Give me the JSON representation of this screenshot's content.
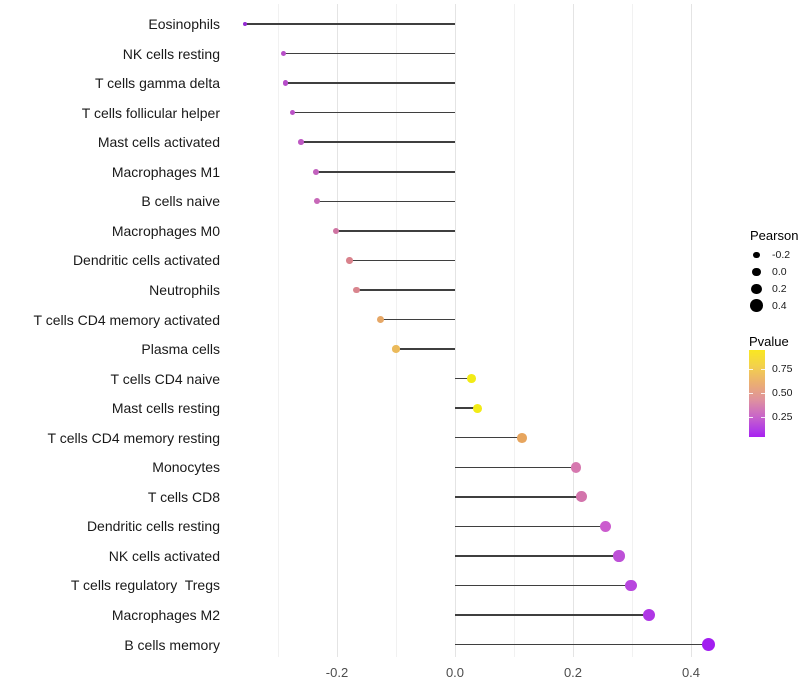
{
  "chart_data": {
    "type": "lollipop",
    "orientation": "horizontal",
    "title": "",
    "xlabel": "",
    "ylabel": "",
    "categories": [
      "Eosinophils",
      "NK cells resting",
      "T cells gamma delta",
      "T cells follicular helper",
      "Mast cells activated",
      "Macrophages M1",
      "B cells naive",
      "Macrophages M0",
      "Dendritic cells activated",
      "Neutrophils",
      "T cells CD4 memory activated",
      "Plasma cells",
      "T cells CD4 naive",
      "Mast cells resting",
      "T cells CD4 memory resting",
      "Monocytes",
      "T cells CD8",
      "Dendritic cells resting",
      "NK cells activated",
      "T cells regulatory  Tregs",
      "Macrophages M2",
      "B cells memory"
    ],
    "series": [
      {
        "name": "Pearson",
        "values": [
          -0.356,
          -0.291,
          -0.287,
          -0.275,
          -0.261,
          -0.236,
          -0.234,
          -0.202,
          -0.179,
          -0.167,
          -0.126,
          -0.1,
          0.028,
          0.038,
          0.114,
          0.205,
          0.215,
          0.255,
          0.278,
          0.298,
          0.329,
          0.429
        ]
      }
    ],
    "point_colors": [
      "#942BD2",
      "#B84FC8",
      "#B64DC9",
      "#BB52C7",
      "#BE58C3",
      "#C262BE",
      "#C768B8",
      "#CF74A2",
      "#D9828C",
      "#D9858E",
      "#E6A766",
      "#EBBA5B",
      "#F2EB16",
      "#F2EB16",
      "#E7A55E",
      "#D678AF",
      "#D374AC",
      "#CB5CCE",
      "#BD50D7",
      "#B846DE",
      "#AF37E5",
      "#A21EF0"
    ],
    "segment_color": "#3f3f3f",
    "xlim": [
      -0.395,
      0.468
    ],
    "x_ticks": [
      -0.2,
      0.0,
      0.2,
      0.4
    ],
    "x_tick_labels": [
      "-0.2",
      "0.0",
      "0.2",
      "0.4"
    ],
    "x_minor_ticks": [
      -0.3,
      -0.1,
      0.1,
      0.3
    ],
    "grid": true,
    "legend_position": "right",
    "legend": {
      "size": {
        "title": "Pearson",
        "entries": [
          {
            "label": "-0.2",
            "value": -0.2
          },
          {
            "label": "0.0",
            "value": 0.0
          },
          {
            "label": "0.2",
            "value": 0.2
          },
          {
            "label": "0.4",
            "value": 0.4
          }
        ]
      },
      "color": {
        "title": "Pvalue",
        "tick_labels": [
          "0.75",
          "0.50",
          "0.25"
        ],
        "gradient_stops": [
          "#F9E721 0%",
          "#F3D24B 18%",
          "#EAAC76 40%",
          "#DE90A0 58%",
          "#C966C8 76%",
          "#B03BE6 92%",
          "#A821F0 100%"
        ]
      }
    }
  }
}
